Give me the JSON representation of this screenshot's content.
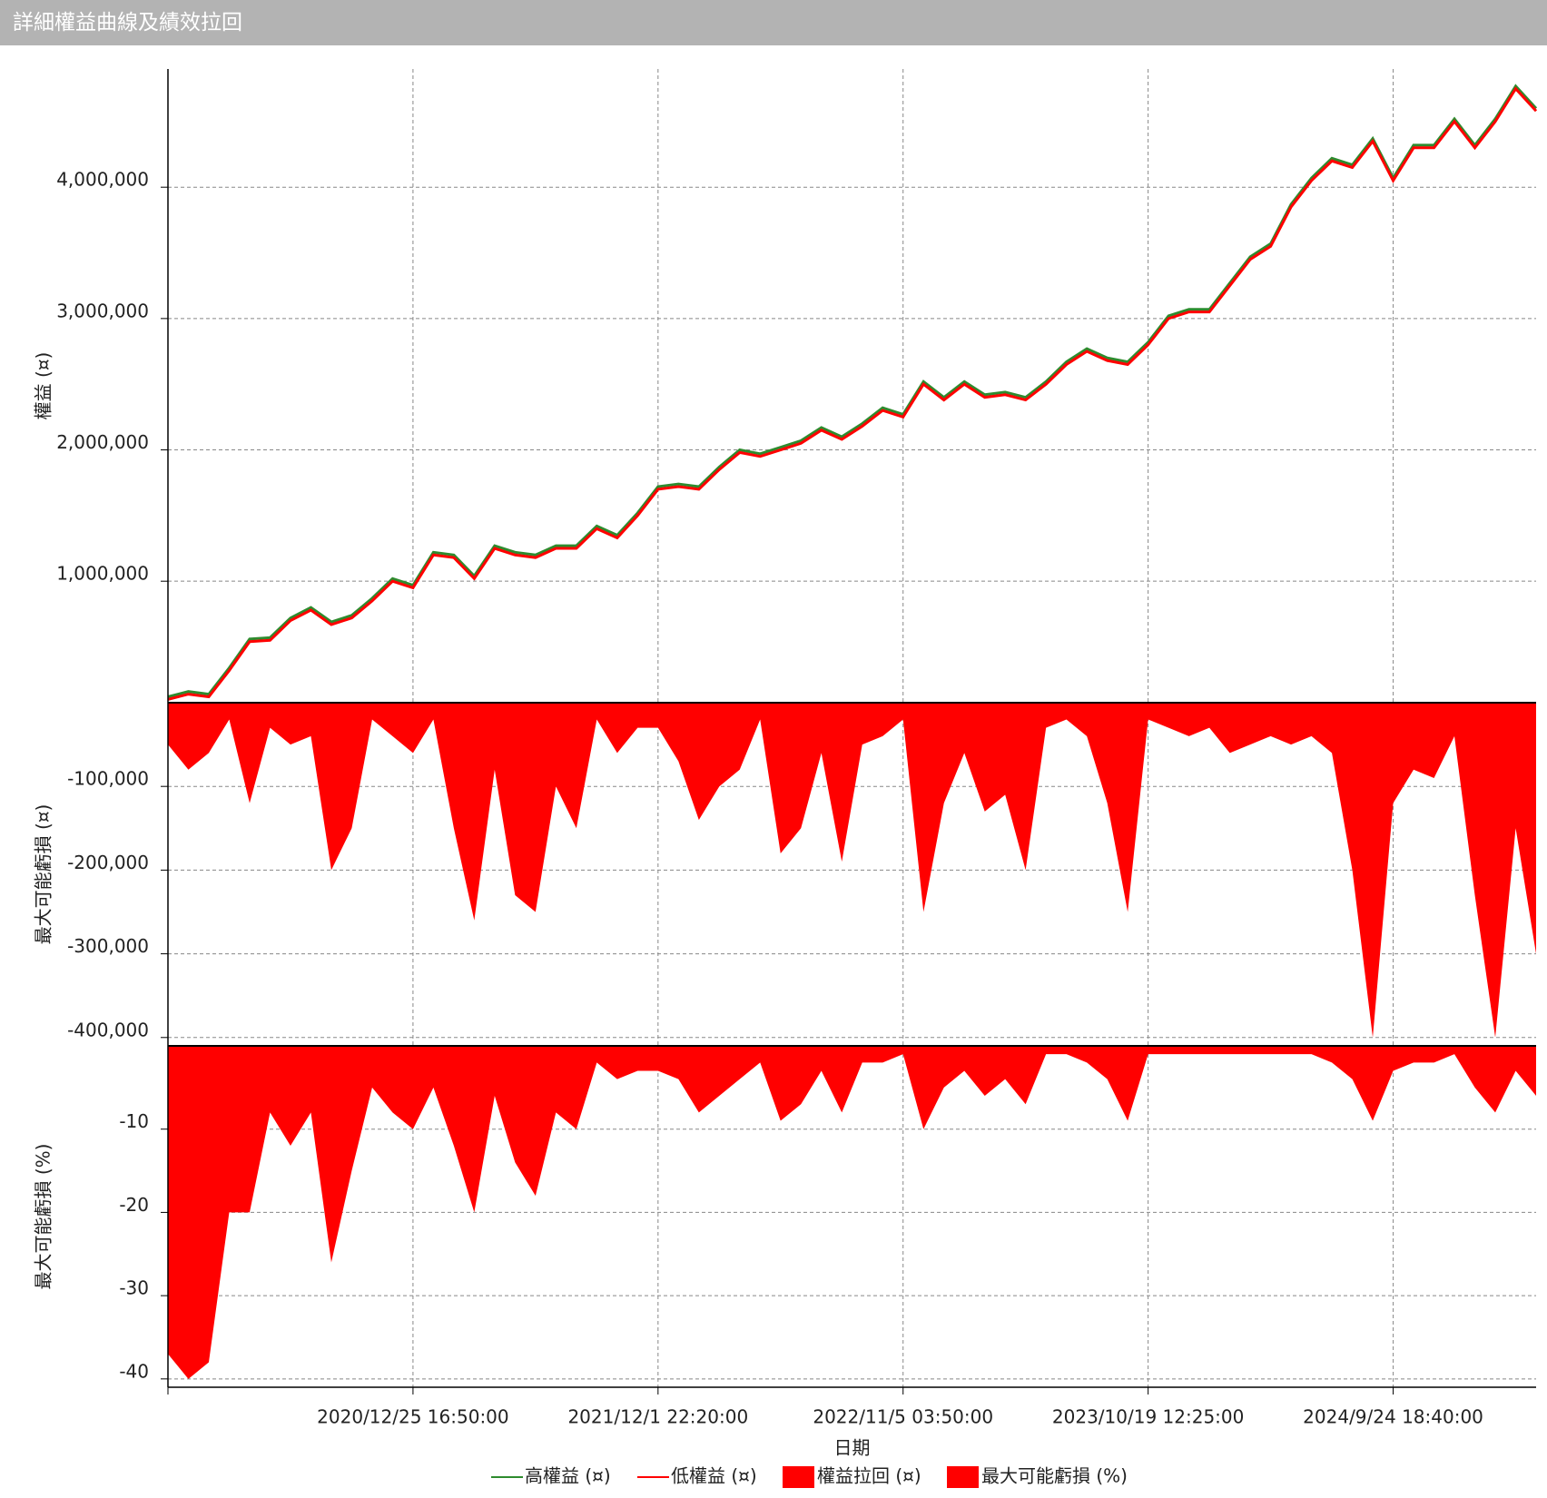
{
  "window_title": "詳細權益曲線及績效拉回",
  "legend": "bottom",
  "chart_data": [
    {
      "type": "line",
      "ylabel": "權益 (¤)",
      "grid": true,
      "ylim": [
        75000,
        4900000
      ],
      "yticks": [
        {
          "value": 1000000,
          "label": "1,000,000"
        },
        {
          "value": 2000000,
          "label": "2,000,000"
        },
        {
          "value": 3000000,
          "label": "3,000,000"
        },
        {
          "value": 4000000,
          "label": "4,000,000"
        }
      ],
      "series": [
        {
          "name": "高權益 (¤)",
          "color": "#2e8b2e",
          "values": [
            120000,
            160000,
            140000,
            340000,
            560000,
            570000,
            720000,
            800000,
            690000,
            740000,
            870000,
            1020000,
            970000,
            1220000,
            1200000,
            1040000,
            1270000,
            1220000,
            1200000,
            1270000,
            1270000,
            1420000,
            1350000,
            1520000,
            1720000,
            1740000,
            1720000,
            1870000,
            2000000,
            1970000,
            2020000,
            2070000,
            2170000,
            2100000,
            2200000,
            2320000,
            2270000,
            2520000,
            2400000,
            2520000,
            2420000,
            2440000,
            2400000,
            2520000,
            2670000,
            2770000,
            2700000,
            2670000,
            2820000,
            3020000,
            3070000,
            3070000,
            3270000,
            3470000,
            3570000,
            3870000,
            4070000,
            4220000,
            4170000,
            4370000,
            4070000,
            4320000,
            4320000,
            4520000,
            4320000,
            4520000,
            4770000,
            4600000
          ]
        },
        {
          "name": "低權益 (¤)",
          "color": "#ff0000",
          "values": [
            100000,
            140000,
            120000,
            320000,
            540000,
            550000,
            700000,
            780000,
            670000,
            720000,
            850000,
            1000000,
            950000,
            1200000,
            1180000,
            1020000,
            1250000,
            1200000,
            1180000,
            1250000,
            1250000,
            1400000,
            1330000,
            1500000,
            1700000,
            1720000,
            1700000,
            1850000,
            1980000,
            1950000,
            2000000,
            2050000,
            2150000,
            2080000,
            2180000,
            2300000,
            2250000,
            2500000,
            2380000,
            2500000,
            2400000,
            2420000,
            2380000,
            2500000,
            2650000,
            2750000,
            2680000,
            2650000,
            2800000,
            3000000,
            3050000,
            3050000,
            3250000,
            3450000,
            3550000,
            3850000,
            4050000,
            4200000,
            4150000,
            4350000,
            4050000,
            4300000,
            4300000,
            4500000,
            4300000,
            4500000,
            4750000,
            4580000
          ]
        }
      ]
    },
    {
      "type": "area",
      "ylabel": "最大可能虧損 (¤)",
      "grid": true,
      "ylim": [
        -410000,
        0
      ],
      "yticks": [
        {
          "value": -100000,
          "label": "-100,000"
        },
        {
          "value": -200000,
          "label": "-200,000"
        },
        {
          "value": -300000,
          "label": "-300,000"
        },
        {
          "value": -400000,
          "label": "-400,000"
        }
      ],
      "series": [
        {
          "name": "權益拉回 (¤)",
          "color": "#ff0000",
          "values": [
            -50000,
            -80000,
            -60000,
            -20000,
            -120000,
            -30000,
            -50000,
            -40000,
            -200000,
            -150000,
            -20000,
            -40000,
            -60000,
            -20000,
            -150000,
            -260000,
            -80000,
            -230000,
            -250000,
            -100000,
            -150000,
            -20000,
            -60000,
            -30000,
            -30000,
            -70000,
            -140000,
            -100000,
            -80000,
            -20000,
            -180000,
            -150000,
            -60000,
            -190000,
            -50000,
            -40000,
            -20000,
            -250000,
            -120000,
            -60000,
            -130000,
            -110000,
            -200000,
            -30000,
            -20000,
            -40000,
            -120000,
            -250000,
            -20000,
            -30000,
            -40000,
            -30000,
            -60000,
            -50000,
            -40000,
            -50000,
            -40000,
            -60000,
            -200000,
            -400000,
            -120000,
            -80000,
            -90000,
            -40000,
            -230000,
            -400000,
            -150000,
            -300000
          ]
        }
      ]
    },
    {
      "type": "area",
      "ylabel": "最大可能虧損 (%)",
      "grid": true,
      "xlabel": "日期",
      "ylim": [
        -41,
        0
      ],
      "yticks": [
        -10,
        -20,
        -30,
        -40
      ],
      "categories": [
        null,
        null,
        null,
        null,
        null,
        null,
        null,
        null,
        null,
        null,
        null,
        null,
        "2020/12/25 16:50:00",
        null,
        null,
        null,
        null,
        null,
        null,
        null,
        null,
        null,
        null,
        null,
        "2021/12/1 22:20:00",
        null,
        null,
        null,
        null,
        null,
        null,
        null,
        null,
        null,
        null,
        null,
        "2022/11/5 03:50:00",
        null,
        null,
        null,
        null,
        null,
        null,
        null,
        null,
        null,
        null,
        null,
        "2023/10/19 12:25:00",
        null,
        null,
        null,
        null,
        null,
        null,
        null,
        null,
        null,
        null,
        null,
        "2024/9/24 18:40:00",
        null,
        null,
        null,
        null,
        null,
        null,
        null
      ],
      "series": [
        {
          "name": "最大可能虧損 (%)",
          "color": "#ff0000",
          "values": [
            -37,
            -40,
            -38,
            -20,
            -20,
            -8,
            -12,
            -8,
            -26,
            -15,
            -5,
            -8,
            -10,
            -5,
            -12,
            -20,
            -6,
            -14,
            -18,
            -8,
            -10,
            -2,
            -4,
            -3,
            -3,
            -4,
            -8,
            -6,
            -4,
            -2,
            -9,
            -7,
            -3,
            -8,
            -2,
            -2,
            -1,
            -10,
            -5,
            -3,
            -6,
            -4,
            -7,
            -1,
            -1,
            -2,
            -4,
            -9,
            -1,
            -1,
            -1,
            -1,
            -1,
            -1,
            -1,
            -1,
            -1,
            -2,
            -4,
            -9,
            -3,
            -2,
            -2,
            -1,
            -5,
            -8,
            -3,
            -6
          ]
        }
      ]
    }
  ]
}
